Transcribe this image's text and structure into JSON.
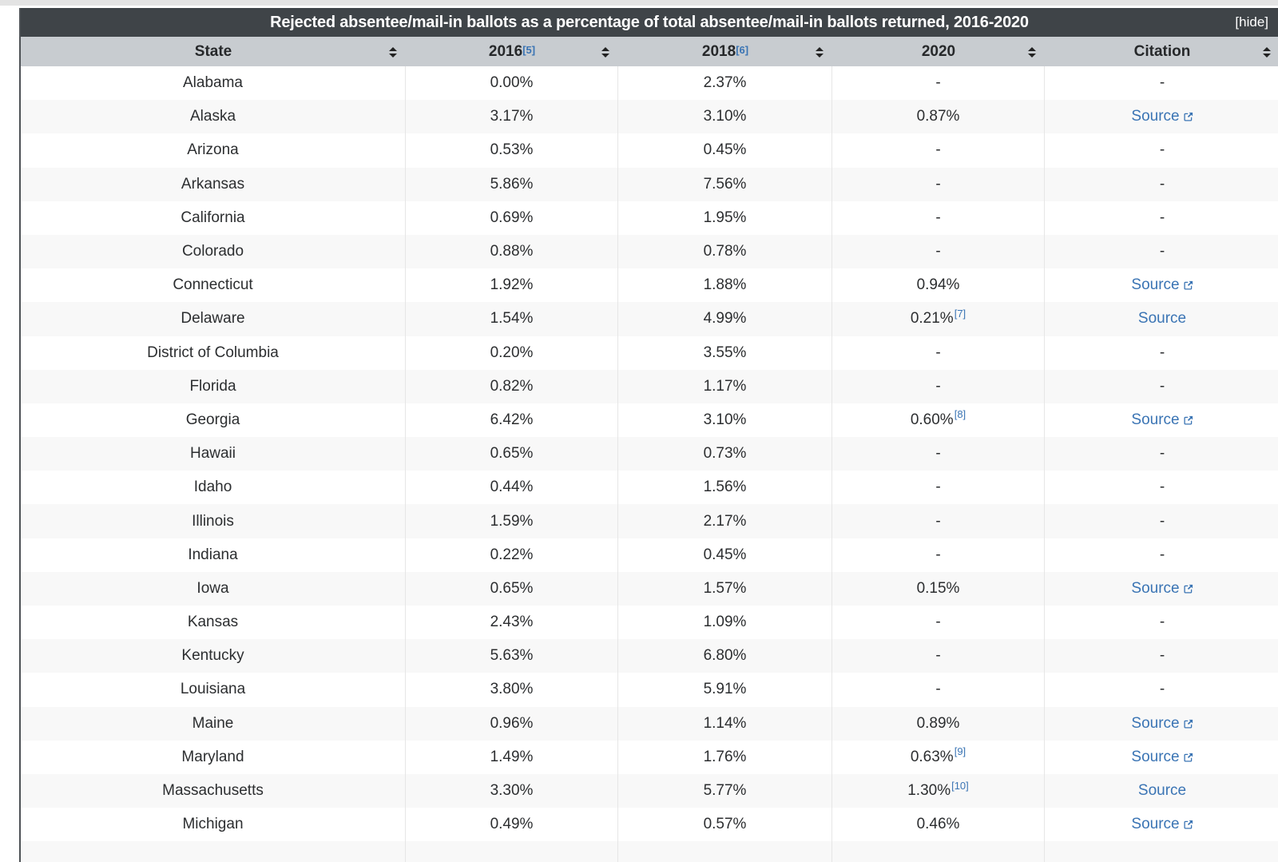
{
  "table": {
    "title": "Rejected absentee/mail-in ballots as a percentage of total absentee/mail-in ballots returned, 2016-2020",
    "hide_label": "[hide]",
    "colors": {
      "title_bar": "#3f4448",
      "header_bg": "#c8ccd0",
      "link_blue": "#3a74b4",
      "row_stripe": "#f8f8f8"
    },
    "columns": [
      {
        "key": "state",
        "label": "State",
        "ref": ""
      },
      {
        "key": "2016",
        "label": "2016",
        "ref": "[5]"
      },
      {
        "key": "2018",
        "label": "2018",
        "ref": "[6]"
      },
      {
        "key": "2020",
        "label": "2020",
        "ref": ""
      },
      {
        "key": "citation",
        "label": "Citation",
        "ref": ""
      }
    ],
    "sort_icon": "sort-arrows",
    "external_link_icon": "external-link",
    "rows": [
      {
        "state": "Alabama",
        "y2016": "0.00%",
        "y2018": "2.37%",
        "y2020": "-",
        "y2020_ref": "",
        "citation": "-",
        "citation_is_link": false,
        "external_icon": false
      },
      {
        "state": "Alaska",
        "y2016": "3.17%",
        "y2018": "3.10%",
        "y2020": "0.87%",
        "y2020_ref": "",
        "citation": "Source",
        "citation_is_link": true,
        "external_icon": true
      },
      {
        "state": "Arizona",
        "y2016": "0.53%",
        "y2018": "0.45%",
        "y2020": "-",
        "y2020_ref": "",
        "citation": "-",
        "citation_is_link": false,
        "external_icon": false
      },
      {
        "state": "Arkansas",
        "y2016": "5.86%",
        "y2018": "7.56%",
        "y2020": "-",
        "y2020_ref": "",
        "citation": "-",
        "citation_is_link": false,
        "external_icon": false
      },
      {
        "state": "California",
        "y2016": "0.69%",
        "y2018": "1.95%",
        "y2020": "-",
        "y2020_ref": "",
        "citation": "-",
        "citation_is_link": false,
        "external_icon": false
      },
      {
        "state": "Colorado",
        "y2016": "0.88%",
        "y2018": "0.78%",
        "y2020": "-",
        "y2020_ref": "",
        "citation": "-",
        "citation_is_link": false,
        "external_icon": false
      },
      {
        "state": "Connecticut",
        "y2016": "1.92%",
        "y2018": "1.88%",
        "y2020": "0.94%",
        "y2020_ref": "",
        "citation": "Source",
        "citation_is_link": true,
        "external_icon": true
      },
      {
        "state": "Delaware",
        "y2016": "1.54%",
        "y2018": "4.99%",
        "y2020": "0.21%",
        "y2020_ref": "[7]",
        "citation": "Source",
        "citation_is_link": true,
        "external_icon": false
      },
      {
        "state": "District of Columbia",
        "y2016": "0.20%",
        "y2018": "3.55%",
        "y2020": "-",
        "y2020_ref": "",
        "citation": "-",
        "citation_is_link": false,
        "external_icon": false
      },
      {
        "state": "Florida",
        "y2016": "0.82%",
        "y2018": "1.17%",
        "y2020": "-",
        "y2020_ref": "",
        "citation": "-",
        "citation_is_link": false,
        "external_icon": false
      },
      {
        "state": "Georgia",
        "y2016": "6.42%",
        "y2018": "3.10%",
        "y2020": "0.60%",
        "y2020_ref": "[8]",
        "citation": "Source",
        "citation_is_link": true,
        "external_icon": true
      },
      {
        "state": "Hawaii",
        "y2016": "0.65%",
        "y2018": "0.73%",
        "y2020": "-",
        "y2020_ref": "",
        "citation": "-",
        "citation_is_link": false,
        "external_icon": false
      },
      {
        "state": "Idaho",
        "y2016": "0.44%",
        "y2018": "1.56%",
        "y2020": "-",
        "y2020_ref": "",
        "citation": "-",
        "citation_is_link": false,
        "external_icon": false
      },
      {
        "state": "Illinois",
        "y2016": "1.59%",
        "y2018": "2.17%",
        "y2020": "-",
        "y2020_ref": "",
        "citation": "-",
        "citation_is_link": false,
        "external_icon": false
      },
      {
        "state": "Indiana",
        "y2016": "0.22%",
        "y2018": "0.45%",
        "y2020": "-",
        "y2020_ref": "",
        "citation": "-",
        "citation_is_link": false,
        "external_icon": false
      },
      {
        "state": "Iowa",
        "y2016": "0.65%",
        "y2018": "1.57%",
        "y2020": "0.15%",
        "y2020_ref": "",
        "citation": "Source",
        "citation_is_link": true,
        "external_icon": true
      },
      {
        "state": "Kansas",
        "y2016": "2.43%",
        "y2018": "1.09%",
        "y2020": "-",
        "y2020_ref": "",
        "citation": "-",
        "citation_is_link": false,
        "external_icon": false
      },
      {
        "state": "Kentucky",
        "y2016": "5.63%",
        "y2018": "6.80%",
        "y2020": "-",
        "y2020_ref": "",
        "citation": "-",
        "citation_is_link": false,
        "external_icon": false
      },
      {
        "state": "Louisiana",
        "y2016": "3.80%",
        "y2018": "5.91%",
        "y2020": "-",
        "y2020_ref": "",
        "citation": "-",
        "citation_is_link": false,
        "external_icon": false
      },
      {
        "state": "Maine",
        "y2016": "0.96%",
        "y2018": "1.14%",
        "y2020": "0.89%",
        "y2020_ref": "",
        "citation": "Source",
        "citation_is_link": true,
        "external_icon": true
      },
      {
        "state": "Maryland",
        "y2016": "1.49%",
        "y2018": "1.76%",
        "y2020": "0.63%",
        "y2020_ref": "[9]",
        "citation": "Source",
        "citation_is_link": true,
        "external_icon": true
      },
      {
        "state": "Massachusetts",
        "y2016": "3.30%",
        "y2018": "5.77%",
        "y2020": "1.30%",
        "y2020_ref": "[10]",
        "citation": "Source",
        "citation_is_link": true,
        "external_icon": false
      },
      {
        "state": "Michigan",
        "y2016": "0.49%",
        "y2018": "0.57%",
        "y2020": "0.46%",
        "y2020_ref": "",
        "citation": "Source",
        "citation_is_link": true,
        "external_icon": true
      }
    ]
  }
}
